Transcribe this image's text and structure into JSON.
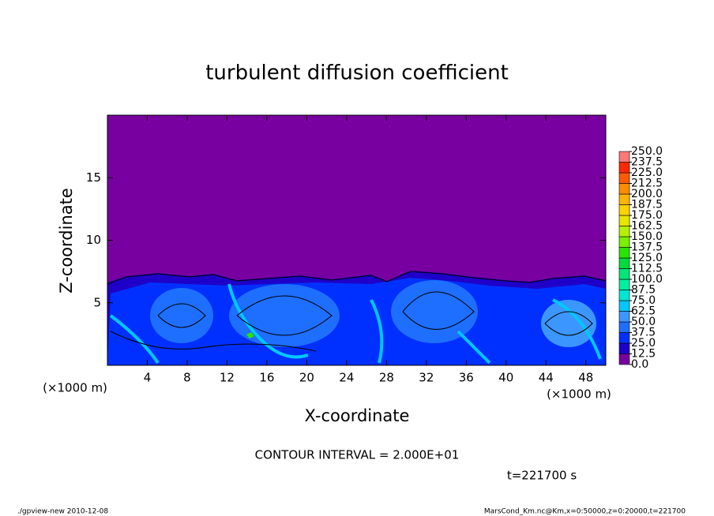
{
  "chart_data": {
    "type": "contour",
    "title": "turbulent diffusion coefficient",
    "x_label": "X-coordinate",
    "y_label": "Z-coordinate",
    "y_unit": "(×1000 m)",
    "x_unit": "(×1000 m)",
    "xlim": [
      0,
      50
    ],
    "ylim": [
      0,
      20
    ],
    "xticks": [
      4,
      8,
      12,
      16,
      20,
      24,
      28,
      32,
      36,
      40,
      44,
      48
    ],
    "yticks": [
      5,
      10,
      15
    ],
    "colorbar": {
      "levels": [
        {
          "value": 0,
          "label": "0.0"
        },
        {
          "value": 12.5,
          "label": "12.5"
        },
        {
          "value": 25,
          "label": "25.0"
        },
        {
          "value": 37.5,
          "label": "37.5"
        },
        {
          "value": 50,
          "label": "50.0"
        },
        {
          "value": 62.5,
          "label": "62.5"
        },
        {
          "value": 75,
          "label": "75.0"
        },
        {
          "value": 87.5,
          "label": "87.5"
        },
        {
          "value": 100,
          "label": "100.0"
        },
        {
          "value": 112.5,
          "label": "112.5"
        },
        {
          "value": 125,
          "label": "125.0"
        },
        {
          "value": 137.5,
          "label": "137.5"
        },
        {
          "value": 150,
          "label": "150.0"
        },
        {
          "value": 162.5,
          "label": "162.5"
        },
        {
          "value": 175,
          "label": "175.0"
        },
        {
          "value": 187.5,
          "label": "187.5"
        },
        {
          "value": 200,
          "label": "200.0"
        },
        {
          "value": 212.5,
          "label": "212.5"
        },
        {
          "value": 225,
          "label": "225.0"
        },
        {
          "value": 237.5,
          "label": "237.5"
        },
        {
          "value": 250,
          "label": "250.0"
        }
      ],
      "colors": [
        "#7800a0",
        "#1e00c8",
        "#0030ff",
        "#1e6eff",
        "#3c96ff",
        "#00c8ff",
        "#00e6d2",
        "#00f0a0",
        "#00e678",
        "#00dc3c",
        "#28e600",
        "#78f000",
        "#b4f000",
        "#e6e600",
        "#ffd200",
        "#ffb400",
        "#ff8c00",
        "#ff5a00",
        "#ff2800",
        "#ff7878"
      ]
    },
    "contour_interval": "CONTOUR INTERVAL = 2.000E+01",
    "time_label": "t=221700 s",
    "footer_left": "./gpview-new  2010-12-08",
    "footer_right": "MarsCond_Km.nc@Km,x=0:50000,z=0:20000,t=221700"
  }
}
